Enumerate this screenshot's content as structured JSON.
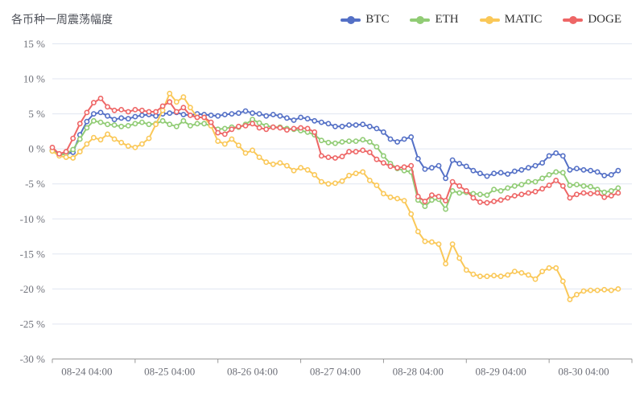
{
  "header": {
    "title": "各币种一周震荡幅度"
  },
  "legend": {
    "items": [
      {
        "label": "BTC",
        "color": "#5470c6"
      },
      {
        "label": "ETH",
        "color": "#91cc75"
      },
      {
        "label": "MATIC",
        "color": "#fac858"
      },
      {
        "label": "DOGE",
        "color": "#ee6666"
      }
    ]
  },
  "colors": {
    "grid_line": "#e0e6f1",
    "axis_line": "#999999",
    "axis_label": "#6e7079",
    "background": "#ffffff"
  },
  "chart_data": {
    "type": "line",
    "title": "各币种一周震荡幅度",
    "xlabel": "",
    "ylabel": "",
    "ylim": [
      -30,
      15
    ],
    "grid": true,
    "legend_position": "top-right",
    "marker": "empty-circle",
    "y_ticks": [
      {
        "value": 15,
        "label": "15 %"
      },
      {
        "value": 10,
        "label": "10 %"
      },
      {
        "value": 5,
        "label": "5 %"
      },
      {
        "value": 0,
        "label": "0 %"
      },
      {
        "value": -5,
        "label": "-5 %"
      },
      {
        "value": -10,
        "label": "-10 %"
      },
      {
        "value": -15,
        "label": "-15 %"
      },
      {
        "value": -20,
        "label": "-20 %"
      },
      {
        "value": -25,
        "label": "-25 %"
      },
      {
        "value": -30,
        "label": "-30 %"
      }
    ],
    "x_tick_labels": [
      "08-24 04:00",
      "08-25 04:00",
      "08-26 04:00",
      "08-27 04:00",
      "08-28 04:00",
      "08-29 04:00",
      "08-30 04:00"
    ],
    "x_tick_indices": [
      5,
      17,
      29,
      41,
      53,
      65,
      77
    ],
    "x_axis_slots": 84,
    "series": [
      {
        "name": "BTC",
        "color": "#5470c6",
        "values": [
          -0.2,
          -0.8,
          -0.7,
          -0.5,
          2.0,
          3.9,
          5.0,
          5.2,
          4.7,
          4.2,
          4.4,
          4.3,
          4.6,
          4.8,
          4.9,
          4.7,
          5.0,
          5.1,
          5.2,
          4.9,
          4.8,
          5.0,
          4.9,
          4.8,
          4.7,
          4.9,
          5.0,
          5.1,
          5.4,
          5.1,
          5.0,
          4.7,
          4.9,
          4.7,
          4.4,
          4.1,
          4.5,
          4.3,
          4.0,
          3.8,
          3.6,
          3.2,
          3.2,
          3.4,
          3.4,
          3.5,
          3.2,
          2.9,
          2.4,
          1.4,
          1.0,
          1.4,
          1.7,
          -1.4,
          -2.9,
          -2.7,
          -2.4,
          -4.2,
          -1.6,
          -2.1,
          -2.5,
          -3.1,
          -3.5,
          -3.9,
          -3.5,
          -3.4,
          -3.6,
          -3.2,
          -3.0,
          -2.7,
          -2.4,
          -2.0,
          -1.0,
          -0.6,
          -1.0,
          -3.0,
          -2.8,
          -3.0,
          -3.1,
          -3.3,
          -3.8,
          -3.7,
          -3.1
        ]
      },
      {
        "name": "ETH",
        "color": "#91cc75",
        "values": [
          -0.3,
          -0.9,
          -0.7,
          -0.1,
          1.4,
          3.0,
          4.0,
          3.8,
          3.5,
          3.4,
          3.2,
          3.3,
          3.6,
          3.8,
          3.5,
          3.6,
          4.0,
          3.5,
          3.2,
          4.0,
          3.3,
          3.6,
          3.6,
          3.3,
          2.8,
          2.9,
          3.1,
          3.1,
          3.5,
          4.2,
          3.7,
          3.3,
          3.1,
          3.1,
          2.9,
          2.8,
          2.6,
          2.4,
          2.0,
          1.2,
          0.9,
          0.8,
          1.0,
          1.1,
          1.1,
          1.3,
          1.0,
          0.3,
          -1.0,
          -2.1,
          -2.8,
          -3.1,
          -3.3,
          -7.3,
          -8.2,
          -7.3,
          -7.2,
          -8.6,
          -6.0,
          -6.3,
          -6.2,
          -6.4,
          -6.5,
          -6.6,
          -5.8,
          -6.0,
          -5.6,
          -5.3,
          -5.1,
          -4.7,
          -4.7,
          -4.2,
          -3.7,
          -3.3,
          -3.4,
          -5.2,
          -5.1,
          -5.3,
          -5.4,
          -5.8,
          -6.2,
          -6.0,
          -5.6
        ]
      },
      {
        "name": "MATIC",
        "color": "#fac858",
        "values": [
          -0.3,
          -1.0,
          -1.2,
          -1.3,
          -0.4,
          0.7,
          1.6,
          1.3,
          2.1,
          1.4,
          0.9,
          0.4,
          0.2,
          0.7,
          1.5,
          3.5,
          5.5,
          7.9,
          6.7,
          7.4,
          5.9,
          4.5,
          4.5,
          3.3,
          1.1,
          0.7,
          1.4,
          0.5,
          -0.6,
          -0.2,
          -1.2,
          -1.9,
          -2.2,
          -2.0,
          -2.4,
          -3.1,
          -2.7,
          -3.0,
          -3.7,
          -4.7,
          -5.0,
          -4.9,
          -4.6,
          -3.8,
          -3.5,
          -3.3,
          -4.5,
          -5.2,
          -6.4,
          -6.9,
          -7.1,
          -7.4,
          -9.3,
          -11.8,
          -13.2,
          -13.3,
          -13.6,
          -16.4,
          -13.6,
          -15.6,
          -17.3,
          -17.9,
          -18.2,
          -18.2,
          -18.1,
          -18.2,
          -18.0,
          -17.5,
          -17.7,
          -18.0,
          -18.6,
          -17.5,
          -17.0,
          -17.0,
          -18.9,
          -21.5,
          -20.8,
          -20.3,
          -20.2,
          -20.2,
          -20.1,
          -20.2,
          -20.0
        ]
      },
      {
        "name": "DOGE",
        "color": "#ee6666",
        "values": [
          0.2,
          -0.7,
          -0.4,
          1.5,
          3.6,
          5.2,
          6.6,
          7.2,
          6.0,
          5.5,
          5.6,
          5.3,
          5.6,
          5.5,
          5.3,
          5.3,
          6.1,
          6.7,
          5.3,
          5.9,
          4.8,
          4.5,
          4.5,
          3.8,
          2.3,
          2.1,
          2.8,
          3.2,
          3.3,
          3.6,
          3.0,
          2.8,
          3.1,
          3.0,
          2.7,
          2.9,
          3.0,
          2.9,
          2.4,
          -1.0,
          -1.2,
          -1.3,
          -1.1,
          -0.4,
          -0.4,
          -0.2,
          -0.5,
          -1.5,
          -2.0,
          -2.5,
          -2.7,
          -2.6,
          -2.4,
          -6.8,
          -7.5,
          -6.6,
          -6.8,
          -7.4,
          -4.7,
          -5.3,
          -6.0,
          -7.0,
          -7.6,
          -7.7,
          -7.5,
          -7.3,
          -7.0,
          -6.7,
          -6.5,
          -6.3,
          -6.1,
          -5.7,
          -5.2,
          -4.5,
          -5.3,
          -7.0,
          -6.5,
          -6.3,
          -6.4,
          -6.3,
          -6.9,
          -6.7,
          -6.3
        ]
      }
    ]
  }
}
